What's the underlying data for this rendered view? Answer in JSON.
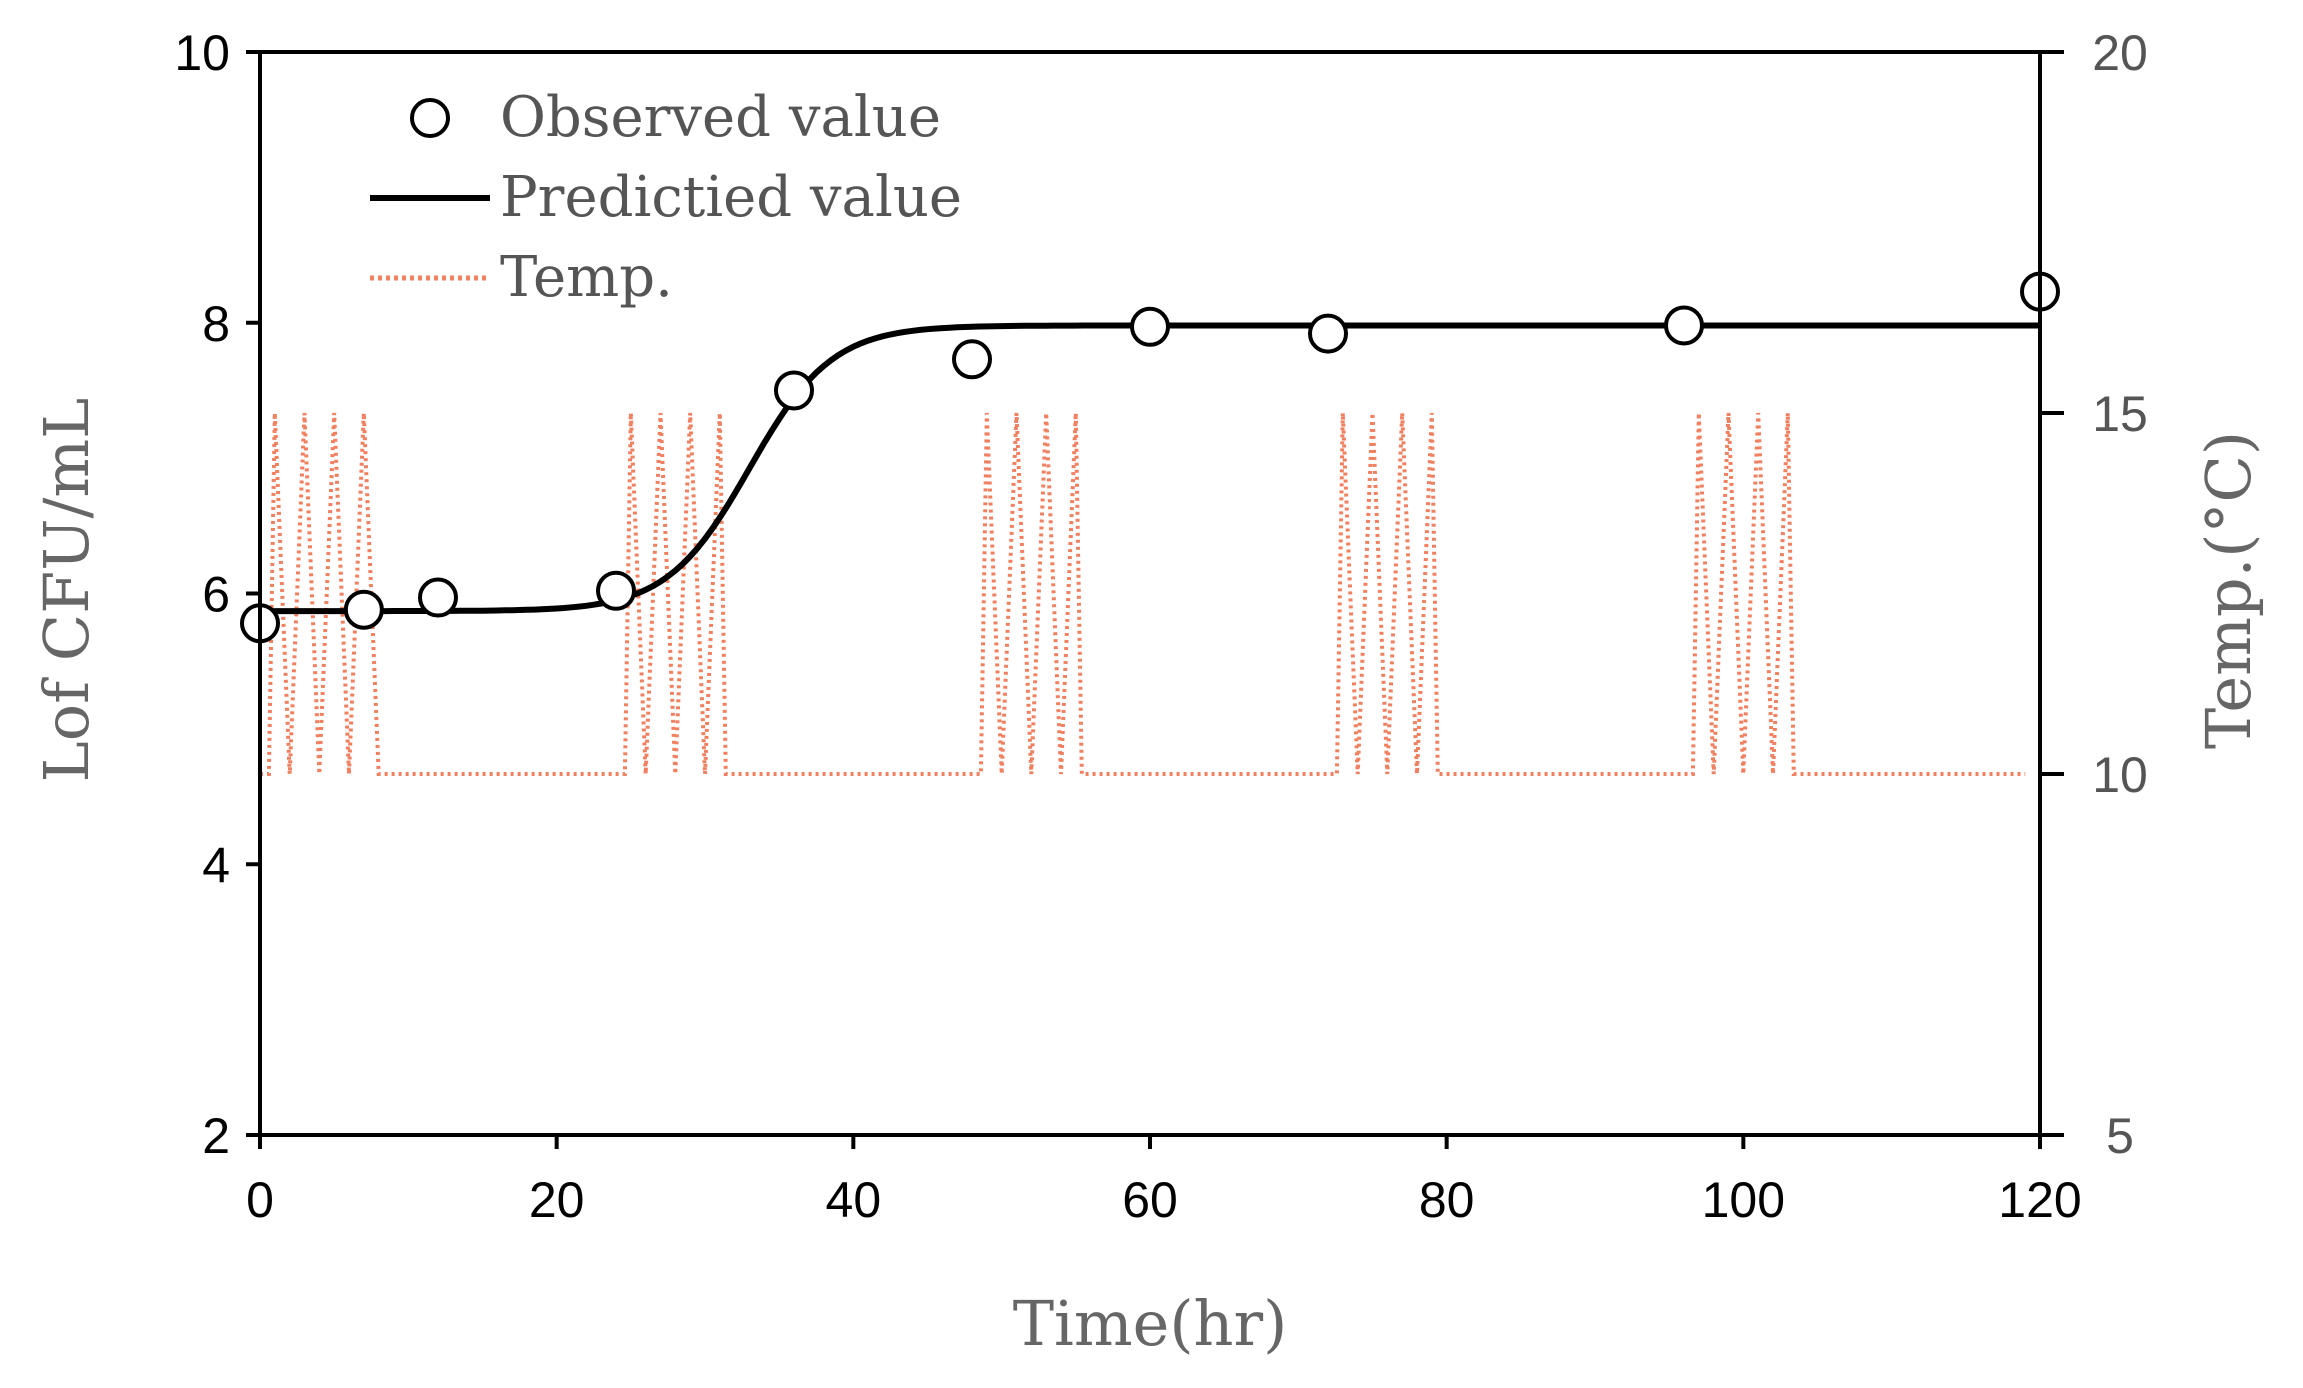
{
  "chart_data": {
    "type": "line",
    "xlabel": "Time(hr)",
    "ylabel": "Lof CFU/mL",
    "y2label": "Temp.(°C)",
    "xlim": [
      0,
      120
    ],
    "ylim": [
      2,
      10
    ],
    "y2lim": [
      5,
      20
    ],
    "xticks": [
      0,
      20,
      40,
      60,
      80,
      100,
      120
    ],
    "yticks": [
      2,
      4,
      6,
      8,
      10
    ],
    "y2ticks": [
      5,
      10,
      15,
      20
    ],
    "grid": false,
    "legend_position": "top-left",
    "legend": {
      "observed": "Observed value",
      "predicted": "Predictied value",
      "temp": "Temp."
    },
    "colors": {
      "observed": "#000000",
      "predicted": "#000000",
      "temp": "#F08060"
    },
    "series": [
      {
        "name": "Observed value",
        "axis": "left",
        "style": "marker-circle",
        "x": [
          0,
          7,
          12,
          24,
          36,
          48,
          60,
          72,
          96,
          120
        ],
        "values": [
          5.78,
          5.88,
          5.97,
          6.02,
          7.5,
          7.73,
          7.97,
          7.92,
          7.98,
          8.23
        ]
      },
      {
        "name": "Predictied value",
        "axis": "left",
        "style": "solid-line",
        "lag_level": 5.87,
        "max_level": 7.98,
        "midpoint_hr": 33,
        "rate": 0.36
      },
      {
        "name": "Temp.",
        "axis": "right",
        "style": "dotted-line",
        "low": 10,
        "high": 15,
        "oscillation_blocks": [
          [
            1,
            8
          ],
          [
            25,
            31
          ],
          [
            49,
            55
          ],
          [
            73,
            79
          ],
          [
            97,
            103
          ]
        ],
        "oscillation_period_hr": 2,
        "end_hr": 119
      }
    ]
  }
}
